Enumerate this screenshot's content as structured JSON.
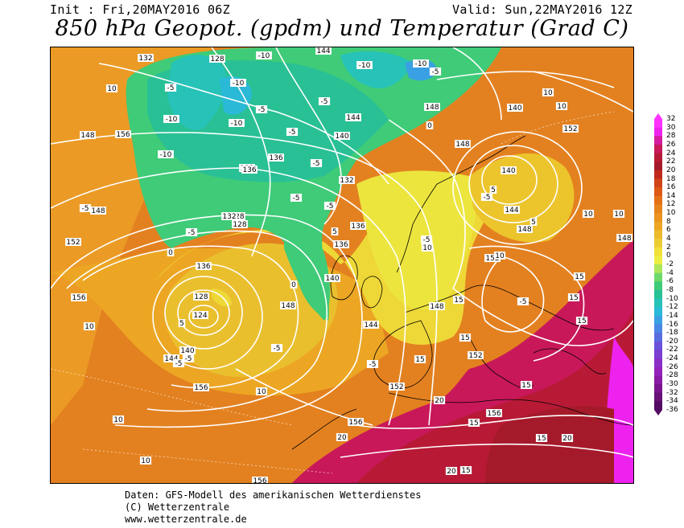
{
  "header": {
    "init": "Init : Fri,20MAY2016 06Z",
    "valid": "Valid: Sun,22MAY2016 12Z",
    "title": "850 hPa Geopot. (gpdm) und Temperatur (Grad C)"
  },
  "colorbar": {
    "ticks": [
      "32",
      "30",
      "28",
      "26",
      "24",
      "22",
      "20",
      "18",
      "16",
      "14",
      "12",
      "10",
      "8",
      "6",
      "4",
      "2",
      "0",
      "-2",
      "-4",
      "-6",
      "-8",
      "-10",
      "-12",
      "-14",
      "-16",
      "-18",
      "-20",
      "-22",
      "-24",
      "-26",
      "-28",
      "-30",
      "-32",
      "-34",
      "-36"
    ],
    "colors": [
      "#ff33ff",
      "#ee22ee",
      "#d41a9e",
      "#c8185a",
      "#b81a36",
      "#a51a2a",
      "#c02a1e",
      "#d04418",
      "#dd5a16",
      "#e47018",
      "#e8841e",
      "#eb9420",
      "#eca623",
      "#ecba2a",
      "#eccd31",
      "#f0e038",
      "#ecee44",
      "#aee65a",
      "#6fd86a",
      "#3fcb78",
      "#29c096",
      "#27c2b8",
      "#2ab9d6",
      "#3aa0e4",
      "#4a86e4",
      "#586ce0",
      "#6a52da",
      "#7a3ed2",
      "#8a2ec8",
      "#9422ba",
      "#8a1aa6",
      "#7a148e",
      "#661078",
      "#530c63"
    ]
  },
  "geopotential_labels": [
    "132",
    "128",
    "136",
    "140",
    "144",
    "148",
    "152",
    "156",
    "124"
  ],
  "temperature_labels": [
    "-10",
    "-5",
    "0",
    "5",
    "10",
    "15",
    "20"
  ],
  "footer": {
    "line1": "Daten: GFS-Modell des amerikanischen Wetterdienstes",
    "line2": "(C) Wetterzentrale",
    "line3": "www.wetterzentrale.de"
  }
}
